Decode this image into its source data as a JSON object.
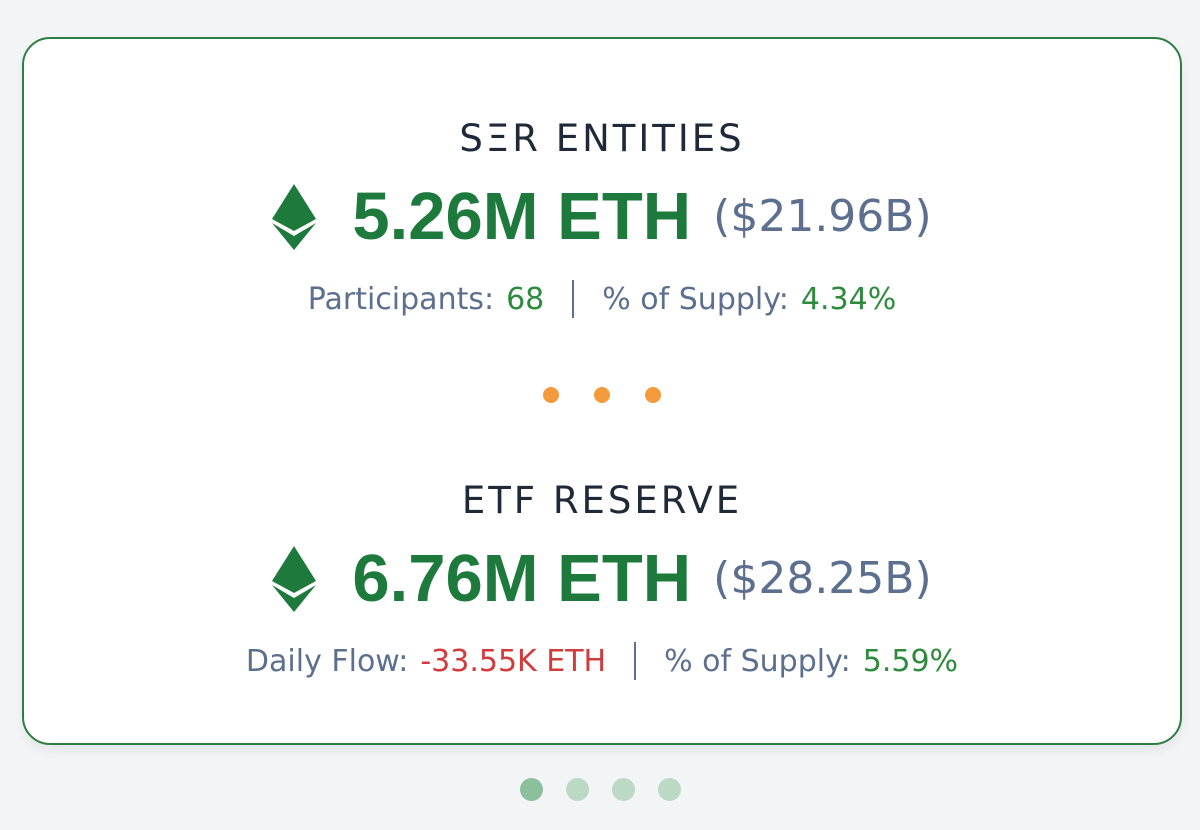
{
  "sections": [
    {
      "label": "SΞR ENTITIES",
      "amount": "5.26M ETH",
      "usd": "($21.96B)",
      "stat1_label": "Participants:",
      "stat1_value": "68",
      "stat2_label": "% of Supply:",
      "stat2_value": "4.34%"
    },
    {
      "label": "ETF RESERVE",
      "amount": "6.76M ETH",
      "usd": "($28.25B)",
      "stat1_label": "Daily Flow:",
      "stat1_value": "-33.55K ETH",
      "stat2_label": "% of Supply:",
      "stat2_value": "5.59%"
    }
  ],
  "icon": "ethereum-icon",
  "colors": {
    "accent_green": "#1e7a3c",
    "negative_red": "#d13b3b",
    "separator_orange": "#f39a3c",
    "muted_text": "#5c6f8e"
  },
  "pager": {
    "count": 4,
    "active_index": 0
  }
}
